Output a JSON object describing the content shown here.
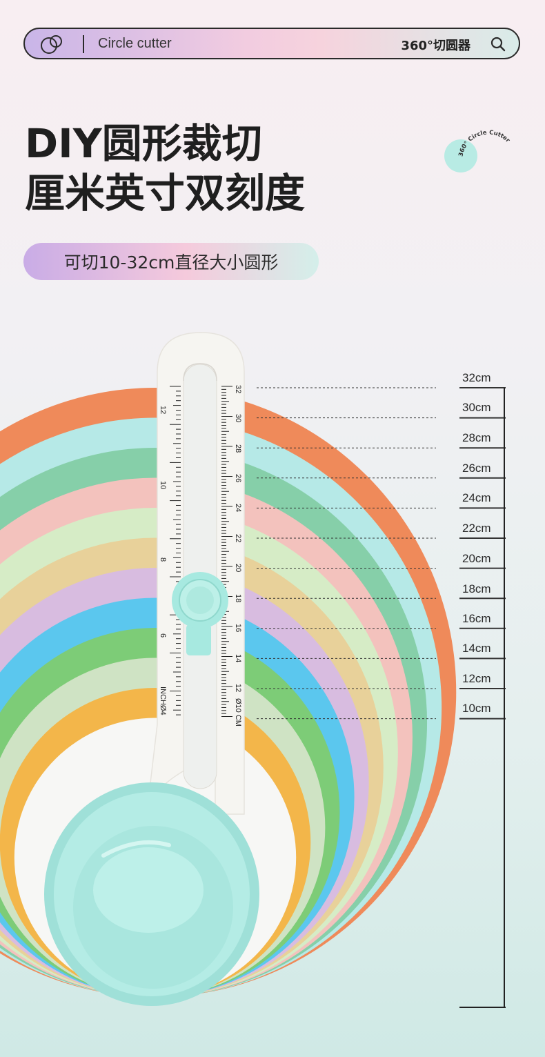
{
  "header": {
    "title": "Circle cutter",
    "right_text": "360°切圆器",
    "logo_icon": "overlapping-circles-icon",
    "search_icon": "search-icon"
  },
  "headline": {
    "line1": "DIY圆形裁切",
    "line2": "厘米英寸双刻度"
  },
  "badge": {
    "text": "360° Circle Cutter"
  },
  "pill": {
    "text": "可切10-32cm直径大小圆形"
  },
  "ruler": {
    "cm_labels": [
      "32",
      "30",
      "28",
      "26",
      "24",
      "22",
      "20",
      "18",
      "16",
      "14",
      "12",
      "Ø10 CM"
    ],
    "inch_labels": [
      "12",
      "10",
      "8",
      "6",
      "INCHØ4"
    ]
  },
  "sizes": [
    "32cm",
    "30cm",
    "28cm",
    "26cm",
    "24cm",
    "22cm",
    "20cm",
    "18cm",
    "16cm",
    "14cm",
    "12cm",
    "10cm"
  ],
  "colors": {
    "rings": [
      "#ef8a5a",
      "#b6e9e7",
      "#86cfa9",
      "#f3c2bd",
      "#d6ecc6",
      "#e8d19a",
      "#d8bce0",
      "#5bc7ee",
      "#7dcc77",
      "#cfe3c4",
      "#f3b64a"
    ],
    "tool": "#f5f4f0",
    "tool_accent": "#a7e9e0"
  }
}
